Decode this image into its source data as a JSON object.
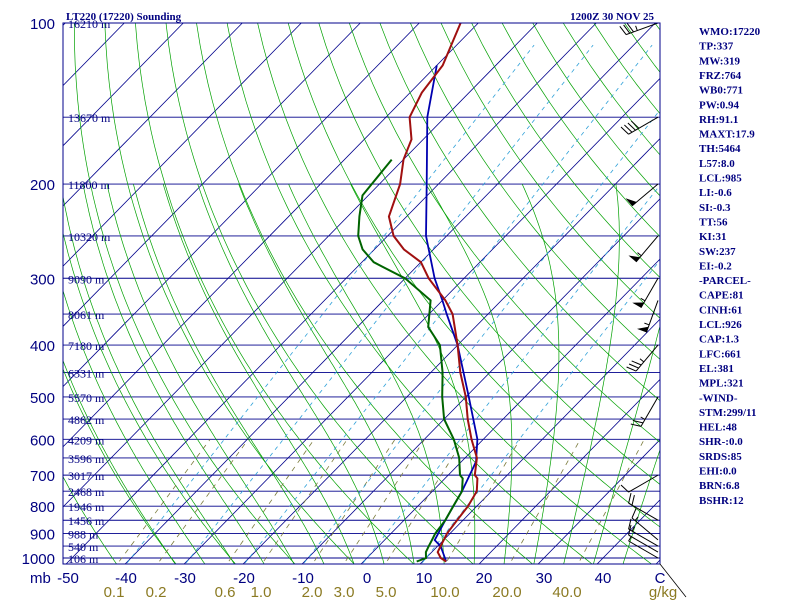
{
  "chart_data": {
    "type": "skew-t sounding",
    "title_left": "LT220 (17220) Sounding",
    "title_right": "1200Z 30 NOV 25",
    "pressure_axis_label": "mb",
    "mixing_ratio_unit": "g/kg",
    "pressure_levels": [
      100,
      200,
      300,
      400,
      500,
      600,
      700,
      800,
      900,
      1000
    ],
    "temperature_ticks": [
      "-50",
      "-40",
      "-30",
      "-20",
      "-10",
      "0",
      "10",
      "20",
      "30",
      "40",
      "C"
    ],
    "mixing_ratio_labels": [
      {
        "label": "0.1",
        "w": 0.1
      },
      {
        "label": "0.2",
        "w": 0.2
      },
      {
        "label": "0.6",
        "w": 0.6
      },
      {
        "label": "1.0",
        "w": 1.0
      },
      {
        "label": "2.0",
        "w": 2.0
      },
      {
        "label": "3.0",
        "w": 3.0
      },
      {
        "label": "5.0",
        "w": 5.0
      },
      {
        "label": "10.0",
        "w": 10.0
      },
      {
        "label": "20.0",
        "w": 20.0
      },
      {
        "label": "40.0",
        "w": 40.0
      }
    ],
    "height_lines": [
      {
        "p": 100,
        "label": "16210 m"
      },
      {
        "p": 150,
        "label": "13670 m"
      },
      {
        "p": 200,
        "label": "11800 m"
      },
      {
        "p": 250,
        "label": "10320 m"
      },
      {
        "p": 300,
        "label": "9090 m"
      },
      {
        "p": 350,
        "label": "8061 m"
      },
      {
        "p": 400,
        "label": "7180 m"
      },
      {
        "p": 450,
        "label": "6331 m"
      },
      {
        "p": 500,
        "label": "5570 m"
      },
      {
        "p": 550,
        "label": "4862 m"
      },
      {
        "p": 600,
        "label": "4209 m"
      },
      {
        "p": 650,
        "label": "3596 m"
      },
      {
        "p": 700,
        "label": "3017 m"
      },
      {
        "p": 750,
        "label": "2468 m"
      },
      {
        "p": 800,
        "label": "1946 m"
      },
      {
        "p": 850,
        "label": "1456 m"
      },
      {
        "p": 900,
        "label": "988 m"
      },
      {
        "p": 950,
        "label": "540 m"
      },
      {
        "p": 1000,
        "label": "106 m"
      }
    ],
    "temperature_profile": [
      [
        1015,
        14.0
      ],
      [
        1000,
        12.5
      ],
      [
        975,
        11.0
      ],
      [
        950,
        10.5
      ],
      [
        925,
        10.0
      ],
      [
        900,
        9.5
      ],
      [
        850,
        9.0
      ],
      [
        800,
        8.5
      ],
      [
        750,
        7.5
      ],
      [
        710,
        5.5
      ],
      [
        700,
        4.5
      ],
      [
        650,
        2.0
      ],
      [
        600,
        -2.0
      ],
      [
        550,
        -6.0
      ],
      [
        500,
        -10.0
      ],
      [
        450,
        -15.0
      ],
      [
        400,
        -20.0
      ],
      [
        350,
        -26.0
      ],
      [
        330,
        -29.5
      ],
      [
        300,
        -36.0
      ],
      [
        280,
        -40.0
      ],
      [
        265,
        -45.0
      ],
      [
        250,
        -49.0
      ],
      [
        230,
        -53.0
      ],
      [
        200,
        -56.5
      ],
      [
        180,
        -60.0
      ],
      [
        165,
        -62.0
      ],
      [
        150,
        -66.0
      ],
      [
        135,
        -68.0
      ],
      [
        120,
        -69.0
      ],
      [
        100,
        -73.0
      ]
    ],
    "dewpoint_profile": [
      [
        1015,
        9.0
      ],
      [
        1000,
        10.0
      ],
      [
        975,
        9.0
      ],
      [
        950,
        8.5
      ],
      [
        925,
        8.0
      ],
      [
        900,
        7.5
      ],
      [
        850,
        7.0
      ],
      [
        800,
        6.0
      ],
      [
        750,
        5.0
      ],
      [
        710,
        3.0
      ],
      [
        700,
        2.0
      ],
      [
        650,
        -1.0
      ],
      [
        600,
        -5.0
      ],
      [
        550,
        -10.0
      ],
      [
        500,
        -14.0
      ],
      [
        450,
        -18.0
      ],
      [
        400,
        -23.0
      ],
      [
        370,
        -28.0
      ],
      [
        330,
        -32.0
      ],
      [
        300,
        -40.0
      ],
      [
        280,
        -48.0
      ],
      [
        265,
        -52.0
      ],
      [
        250,
        -55.0
      ],
      [
        230,
        -58.0
      ],
      [
        210,
        -61.0
      ],
      [
        180,
        -62.0
      ]
    ],
    "parcel_profile": [
      [
        1015,
        14.0
      ],
      [
        950,
        10.5
      ],
      [
        926,
        8.5
      ],
      [
        850,
        7.0
      ],
      [
        750,
        5.0
      ],
      [
        661,
        2.5
      ],
      [
        600,
        -1.0
      ],
      [
        500,
        -9.5
      ],
      [
        400,
        -20.0
      ],
      [
        350,
        -27.0
      ],
      [
        330,
        -30.0
      ],
      [
        300,
        -35.0
      ],
      [
        250,
        -43.5
      ],
      [
        200,
        -52.0
      ],
      [
        150,
        -63.0
      ],
      [
        120,
        -70.0
      ]
    ],
    "wind_barbs": [
      {
        "p": 1000,
        "dir": 300,
        "spd": 5
      },
      {
        "p": 975,
        "dir": 300,
        "spd": 10
      },
      {
        "p": 950,
        "dir": 300,
        "spd": 15
      },
      {
        "p": 925,
        "dir": 310,
        "spd": 15
      },
      {
        "p": 850,
        "dir": 300,
        "spd": 20
      },
      {
        "p": 700,
        "dir": 240,
        "spd": 10
      },
      {
        "p": 500,
        "dir": 210,
        "spd": 25
      },
      {
        "p": 400,
        "dir": 220,
        "spd": 35
      },
      {
        "p": 330,
        "dir": 200,
        "spd": 55
      },
      {
        "p": 300,
        "dir": 210,
        "spd": 55
      },
      {
        "p": 250,
        "dir": 220,
        "spd": 55
      },
      {
        "p": 200,
        "dir": 230,
        "spd": 50
      },
      {
        "p": 150,
        "dir": 240,
        "spd": 40
      },
      {
        "p": 100,
        "dir": 250,
        "spd": 35
      }
    ],
    "colors": {
      "isobar": "#00008b",
      "isotherm": "#00008b",
      "dry_adiabat": "#00a000",
      "moist_adiabat": "#00a000",
      "mixing_ratio": "#7a7a3a",
      "mix_labels": "#8b7a22",
      "wet_bulb": "#2ea0d8",
      "temperature": "#a01010",
      "dewpoint": "#006400",
      "parcel": "#0000b0",
      "wind": "#000000",
      "labels": "#000080"
    }
  },
  "indices": [
    "WMO:17220",
    "TP:337",
    "MW:319",
    "FRZ:764",
    "WB0:771",
    "PW:0.94",
    "RH:91.1",
    "MAXT:17.9",
    "TH:5464",
    "L57:8.0",
    "LCL:985",
    "LI:-0.6",
    "SI:-0.3",
    "TT:56",
    "KI:31",
    "SW:237",
    "EI:-0.2",
    "-PARCEL-",
    "CAPE:81",
    "CINH:61",
    "LCL:926",
    "CAP:1.3",
    "LFC:661",
    "EL:381",
    "MPL:321",
    "-WIND-",
    "STM:299/11",
    "HEL:48",
    "SHR-:0.0",
    "SRDS:85",
    "EHI:0.0",
    "BRN:6.8",
    "BSHR:12"
  ]
}
